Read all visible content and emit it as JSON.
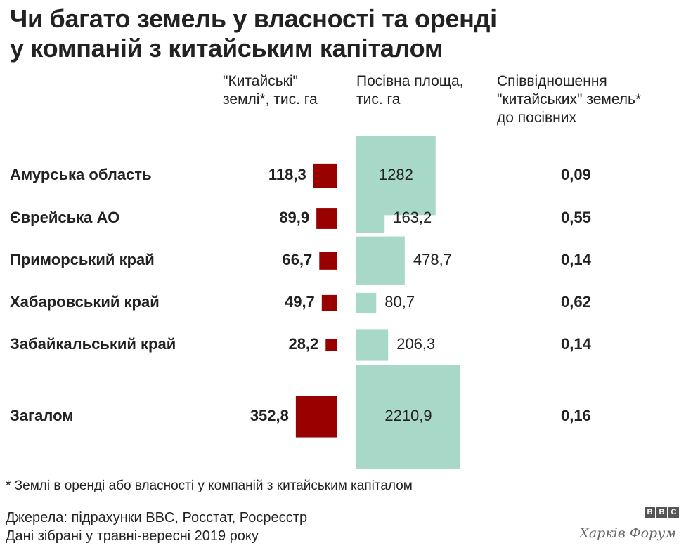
{
  "title_lines": [
    "Чи багато земель у власності та оренді",
    "у компаній з китайським капіталом"
  ],
  "column_headers": {
    "chinese_land": "\"Китайські\"\nземлі*, тис. га",
    "sown_area": "Посівна площа,\nтис. га",
    "ratio": "Співвідношення\n\"китайських\" земель*\nдо посівних"
  },
  "chart_data": {
    "type": "table",
    "rows": [
      {
        "region": "Амурська область",
        "chinese_land": 118.3,
        "chinese_label": "118,3",
        "sown_area": 1282,
        "sown_label": "1282",
        "ratio": "0,09"
      },
      {
        "region": "Єврейська АО",
        "chinese_land": 89.9,
        "chinese_label": "89,9",
        "sown_area": 163.2,
        "sown_label": "163,2",
        "ratio": "0,55"
      },
      {
        "region": "Приморський край",
        "chinese_land": 66.7,
        "chinese_label": "66,7",
        "sown_area": 478.7,
        "sown_label": "478,7",
        "ratio": "0,14"
      },
      {
        "region": "Хабаровський край",
        "chinese_land": 49.7,
        "chinese_label": "49,7",
        "sown_area": 80.7,
        "sown_label": "80,7",
        "ratio": "0,62"
      },
      {
        "region": "Забайкальський край",
        "chinese_land": 28.2,
        "chinese_label": "28,2",
        "sown_area": 206.3,
        "sown_label": "206,3",
        "ratio": "0,14"
      },
      {
        "region": "Загалом",
        "chinese_land": 352.8,
        "chinese_label": "352,8",
        "sown_area": 2210.9,
        "sown_label": "2210,9",
        "ratio": "0,16"
      }
    ],
    "encoding": "square area proportional to value"
  },
  "colors": {
    "chinese": "#990000",
    "sown": "#a8d8c8"
  },
  "footnote": "* Землі в оренді або власності у компаній з китайським капіталом",
  "sources_line1": "Джерела: підрахунки BBC, Росстат, Росреєстр",
  "sources_line2": "Дані зібрані у травні-вересні 2019 року",
  "bbc_letters": [
    "B",
    "B",
    "C"
  ],
  "watermark": "Харків Форум"
}
